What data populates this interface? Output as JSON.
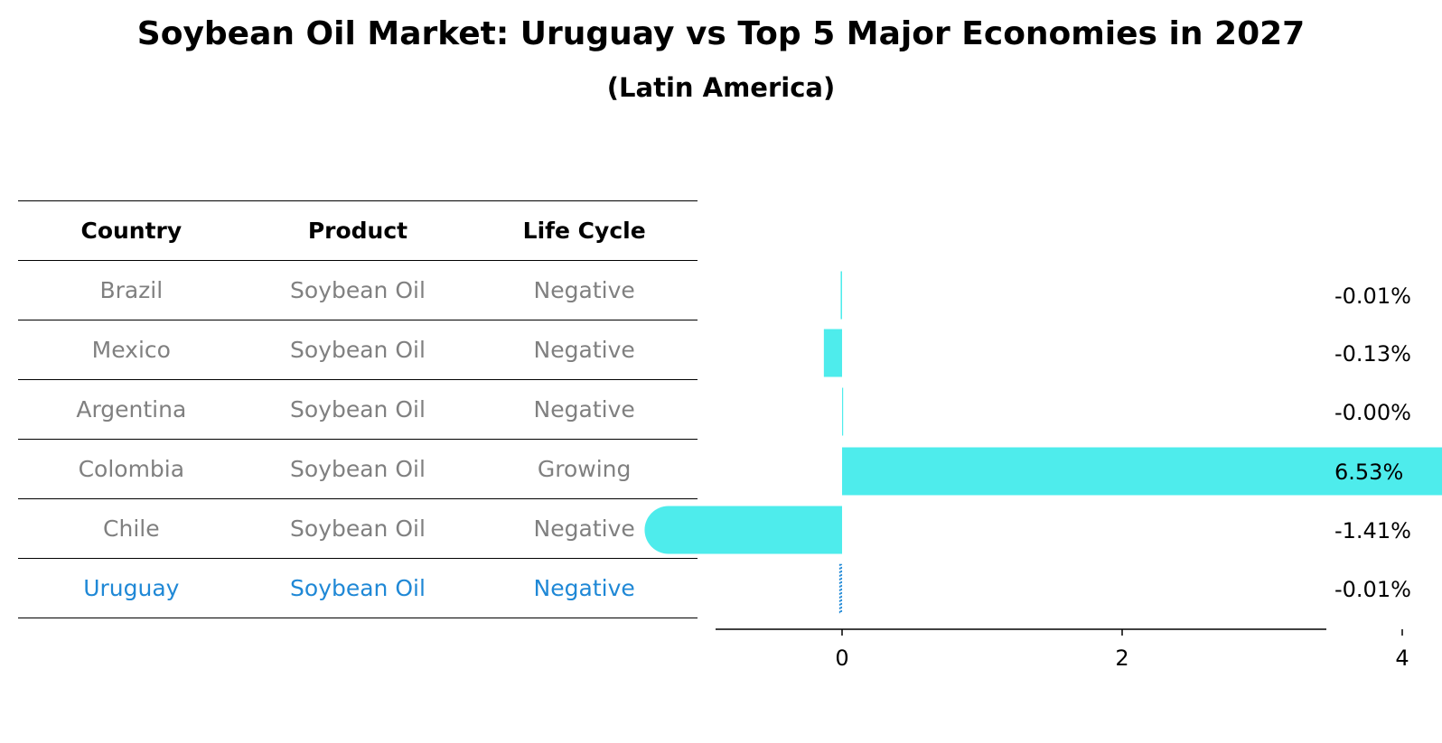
{
  "title": "Soybean Oil Market: Uruguay vs Top 5 Major Economies in 2027",
  "subtitle": "(Latin America)",
  "colors": {
    "bar": "#4eecec",
    "highlight_text": "#1f88d6",
    "muted_text": "#808080",
    "uruguay_bar": "#1f88d6"
  },
  "table": {
    "headers": [
      "Country",
      "Product",
      "Life Cycle"
    ],
    "rows": [
      {
        "country": "Brazil",
        "product": "Soybean Oil",
        "life_cycle": "Negative",
        "highlight": false
      },
      {
        "country": "Mexico",
        "product": "Soybean Oil",
        "life_cycle": "Negative",
        "highlight": false
      },
      {
        "country": "Argentina",
        "product": "Soybean Oil",
        "life_cycle": "Negative",
        "highlight": false
      },
      {
        "country": "Colombia",
        "product": "Soybean Oil",
        "life_cycle": "Growing",
        "highlight": false
      },
      {
        "country": "Chile",
        "product": "Soybean Oil",
        "life_cycle": "Negative",
        "highlight": false
      },
      {
        "country": "Uruguay",
        "product": "Soybean Oil",
        "life_cycle": "Negative",
        "highlight": true
      }
    ]
  },
  "chart_data": {
    "type": "bar",
    "orientation": "horizontal",
    "categories": [
      "Brazil",
      "Mexico",
      "Argentina",
      "Colombia",
      "Chile",
      "Uruguay"
    ],
    "values": [
      -0.01,
      -0.13,
      -0.0,
      6.53,
      -1.41,
      -0.01
    ],
    "value_labels": [
      "-0.01%",
      "-0.13%",
      "-0.00%",
      "6.53%",
      "-1.41%",
      "-0.01%"
    ],
    "highlighted_category": "Uruguay",
    "xticks": [
      0,
      2,
      4,
      6
    ],
    "xlim": [
      -1.8,
      6.95
    ],
    "grid": false,
    "legend": "none"
  }
}
